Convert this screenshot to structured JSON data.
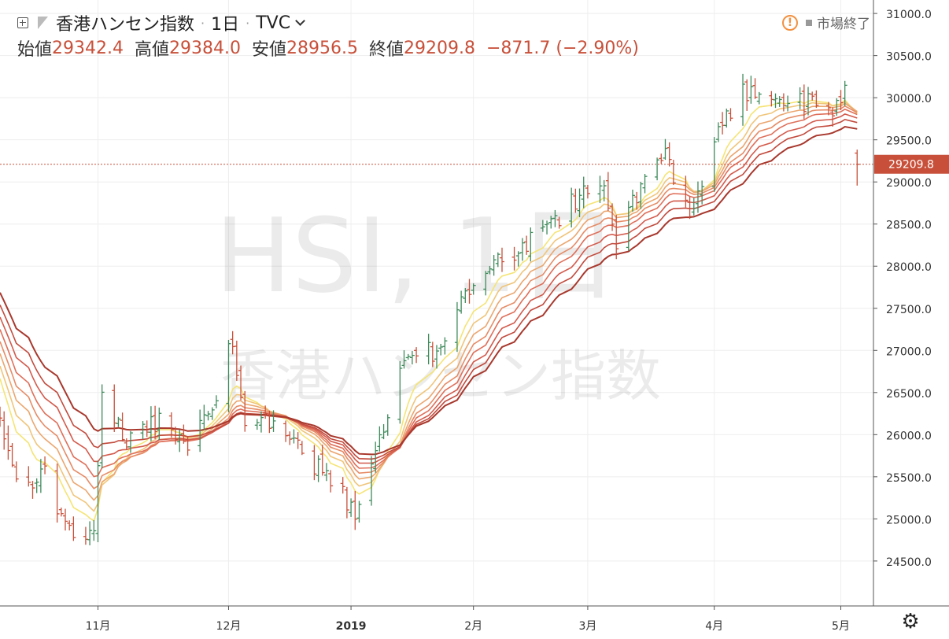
{
  "header": {
    "symbol_name": "香港ハンセン指数",
    "interval": "1日",
    "source": "TVC",
    "ohlc": {
      "open_label": "始値",
      "open": "29342.4",
      "high_label": "高値",
      "high": "29384.0",
      "low_label": "安値",
      "low": "28956.5",
      "close_label": "終値",
      "close": "29209.8",
      "change": "−871.7 (−2.90%)"
    },
    "market_status": "市場終了"
  },
  "watermark": {
    "main": "HSI, 1日",
    "sub": "香港ハンセン指数"
  },
  "price_label": "29209.8",
  "icons": {
    "add": "plus-box-icon",
    "flag": "flag-icon",
    "warning": "warning-icon",
    "status": "status-square-icon",
    "settings": "gear-icon"
  },
  "colors": {
    "up": "#3e8a5b",
    "down": "#c8503a",
    "price_line": "#c8503a",
    "ribbon": [
      "#f5e474",
      "#f0c57a",
      "#eba66f",
      "#e68b66",
      "#df6f5a",
      "#d35a4c",
      "#c24a3d",
      "#a8382d"
    ]
  },
  "chart_data": {
    "type": "ohlc",
    "title": "香港ハンセン指数",
    "y_ticks": [
      "31000.0",
      "30500.0",
      "30000.0",
      "29500.0",
      "29000.0",
      "28500.0",
      "28000.0",
      "27500.0",
      "27000.0",
      "26500.0",
      "26000.0",
      "25500.0",
      "25000.0",
      "24500.0"
    ],
    "ylim": [
      24200,
      31300
    ],
    "x_ticks": [
      {
        "label": "11月",
        "date": "2018-11-01"
      },
      {
        "label": "12月",
        "date": "2018-12-03"
      },
      {
        "label": "2019",
        "date": "2019-01-02"
      },
      {
        "label": "2月",
        "date": "2019-02-01"
      },
      {
        "label": "3月",
        "date": "2019-03-01"
      },
      {
        "label": "4月",
        "date": "2019-04-01"
      },
      {
        "label": "5月",
        "date": "2019-05-02"
      }
    ],
    "xlim": [
      "2018-10-08",
      "2019-05-10"
    ],
    "last_close": 29209.8,
    "ohlc_anchors": [
      {
        "date": "2018-10-08",
        "close": 26200
      },
      {
        "date": "2018-10-12",
        "close": 25400
      },
      {
        "date": "2018-10-19",
        "close": 25500
      },
      {
        "date": "2018-10-26",
        "close": 24700
      },
      {
        "date": "2018-10-31",
        "close": 24950
      },
      {
        "date": "2018-11-02",
        "close": 26450
      },
      {
        "date": "2018-11-09",
        "close": 25900
      },
      {
        "date": "2018-11-16",
        "close": 26200
      },
      {
        "date": "2018-11-23",
        "close": 25900
      },
      {
        "date": "2018-11-30",
        "close": 26500
      },
      {
        "date": "2018-12-03",
        "close": 27200
      },
      {
        "date": "2018-12-07",
        "close": 26100
      },
      {
        "date": "2018-12-14",
        "close": 26200
      },
      {
        "date": "2018-12-21",
        "close": 25750
      },
      {
        "date": "2018-12-28",
        "close": 25500
      },
      {
        "date": "2019-01-03",
        "close": 25100
      },
      {
        "date": "2019-01-08",
        "close": 25850
      },
      {
        "date": "2019-01-15",
        "close": 26800
      },
      {
        "date": "2019-01-22",
        "close": 27000
      },
      {
        "date": "2019-01-29",
        "close": 27550
      },
      {
        "date": "2019-02-04",
        "close": 27950
      },
      {
        "date": "2019-02-12",
        "close": 28150
      },
      {
        "date": "2019-02-19",
        "close": 28450
      },
      {
        "date": "2019-02-26",
        "close": 28800
      },
      {
        "date": "2019-03-04",
        "close": 29000
      },
      {
        "date": "2019-03-08",
        "close": 28300
      },
      {
        "date": "2019-03-13",
        "close": 28850
      },
      {
        "date": "2019-03-20",
        "close": 29400
      },
      {
        "date": "2019-03-26",
        "close": 28550
      },
      {
        "date": "2019-04-01",
        "close": 29550
      },
      {
        "date": "2019-04-08",
        "close": 30100
      },
      {
        "date": "2019-04-15",
        "close": 30050
      },
      {
        "date": "2019-04-22",
        "close": 29950
      },
      {
        "date": "2019-04-29",
        "close": 29850
      },
      {
        "date": "2019-05-03",
        "close": 30050
      },
      {
        "date": "2019-05-06",
        "close": 29209.8
      }
    ],
    "ribbon_periods": [
      8,
      11,
      14,
      17,
      20,
      24,
      28,
      33
    ]
  }
}
